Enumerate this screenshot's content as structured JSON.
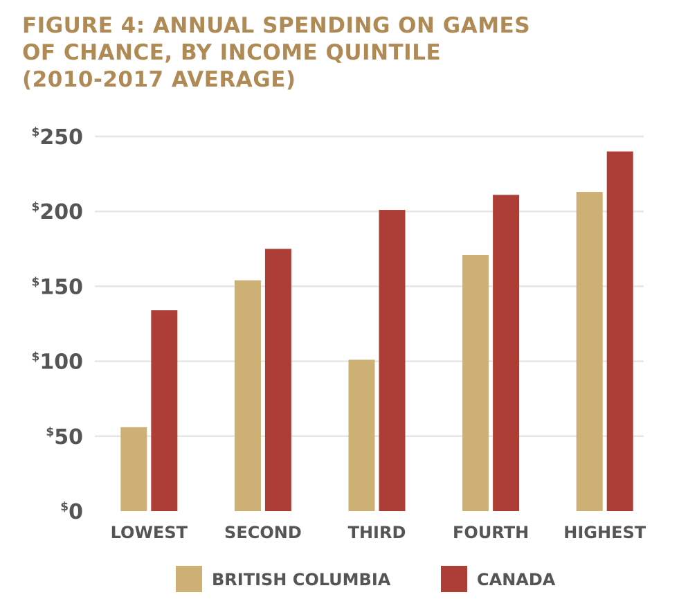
{
  "chart_data": {
    "type": "bar",
    "title_lines": [
      "FIGURE 4: ANNUAL SPENDING ON GAMES",
      "OF CHANCE, BY INCOME QUINTILE",
      "(2010-2017 AVERAGE)"
    ],
    "categories": [
      "LOWEST",
      "SECOND",
      "THIRD",
      "FOURTH",
      "HIGHEST"
    ],
    "series": [
      {
        "name": "BRITISH COLUMBIA",
        "color": "#ccb074",
        "values": [
          56,
          154,
          101,
          171,
          213
        ]
      },
      {
        "name": "CANADA",
        "color": "#ad3e35",
        "values": [
          134,
          175,
          201,
          211,
          240
        ]
      }
    ],
    "yticks": [
      0,
      50,
      100,
      150,
      200,
      250
    ],
    "ytick_labels": [
      "$0",
      "$50",
      "$100",
      "$150",
      "$200",
      "$250"
    ],
    "ylim": [
      0,
      250
    ],
    "xlabel": "",
    "ylabel": "",
    "grid": true,
    "legend_position": "bottom-center",
    "title_color": "#b08a55",
    "grid_color": "#e6e6e6"
  }
}
